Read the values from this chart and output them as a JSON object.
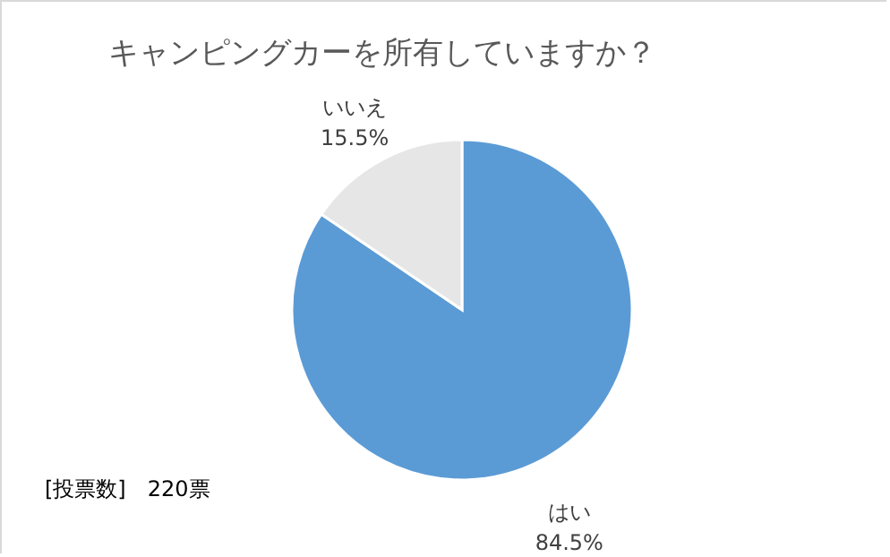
{
  "chart_data": {
    "type": "pie",
    "title": "キャンピングカーを所有していますか？",
    "categories": [
      "はい",
      "いいえ"
    ],
    "values": [
      84.5,
      15.5
    ],
    "value_labels": [
      "84.5%",
      "15.5%"
    ],
    "colors": [
      "#5b9bd5",
      "#e7e6e6"
    ],
    "annotations": [
      "[投票数]　220票"
    ]
  }
}
